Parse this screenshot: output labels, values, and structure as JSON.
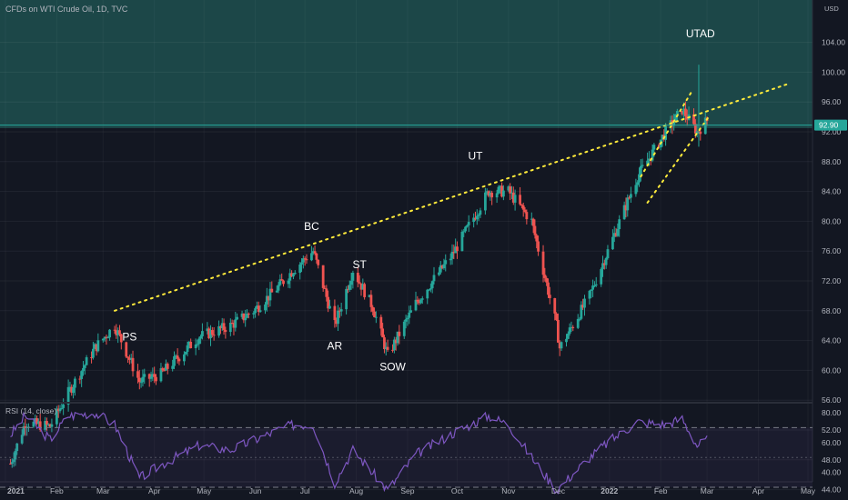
{
  "header": {
    "title": "CFDs on WTI Crude Oil, 1D, TVC",
    "currency": "USD"
  },
  "rsi": {
    "title": "RSI (14, close)",
    "ticks": [
      "80.00",
      "60.00",
      "40.00"
    ]
  },
  "price_axis": {
    "ticks": [
      "104.00",
      "100.00",
      "96.00",
      "92.00",
      "88.00",
      "84.00",
      "80.00",
      "76.00",
      "72.00",
      "68.00",
      "64.00",
      "60.00",
      "56.00",
      "52.00",
      "48.00",
      "44.00"
    ],
    "last_price": "92.90"
  },
  "time_axis": {
    "labels": [
      "2021",
      "Feb",
      "Mar",
      "Apr",
      "May",
      "Jun",
      "Jul",
      "Aug",
      "Sep",
      "Oct",
      "Nov",
      "Dec",
      "2022",
      "Feb",
      "Mar",
      "Apr",
      "May"
    ]
  },
  "annotations": [
    "PS",
    "BC",
    "AR",
    "ST",
    "SOW",
    "UT",
    "UTAD"
  ],
  "colors": {
    "up": "#26a69a",
    "down": "#ef5350",
    "rsi": "#7e57c2",
    "trendline": "#ffeb3b",
    "zone": "#1e4d4d"
  },
  "chart_data": {
    "type": "candlestick",
    "title": "CFDs on WTI Crude Oil, 1D, TVC",
    "ylim": [
      42,
      106
    ],
    "rsi_ylim": [
      25,
      85
    ],
    "rsi_bands": [
      70,
      50,
      30
    ],
    "price_anchors": [
      [
        "2021-01-04",
        47.5
      ],
      [
        "2021-01-13",
        53
      ],
      [
        "2021-01-28",
        52.5
      ],
      [
        "2021-02-08",
        57
      ],
      [
        "2021-02-24",
        63
      ],
      [
        "2021-03-08",
        66
      ],
      [
        "2021-03-23",
        58.5
      ],
      [
        "2021-04-05",
        59.5
      ],
      [
        "2021-04-28",
        64.5
      ],
      [
        "2021-05-17",
        66
      ],
      [
        "2021-05-31",
        68
      ],
      [
        "2021-06-14",
        71
      ],
      [
        "2021-06-24",
        73.5
      ],
      [
        "2021-07-06",
        76
      ],
      [
        "2021-07-19",
        66
      ],
      [
        "2021-07-30",
        73.5
      ],
      [
        "2021-08-11",
        68.5
      ],
      [
        "2021-08-20",
        62
      ],
      [
        "2021-09-06",
        69
      ],
      [
        "2021-09-28",
        75.5
      ],
      [
        "2021-10-20",
        84
      ],
      [
        "2021-11-01",
        84
      ],
      [
        "2021-11-15",
        80
      ],
      [
        "2021-11-30",
        66
      ],
      [
        "2021-12-02",
        63
      ],
      [
        "2021-12-20",
        70
      ],
      [
        "2021-12-31",
        76
      ],
      [
        "2022-01-18",
        86
      ],
      [
        "2022-02-04",
        92
      ],
      [
        "2022-02-14",
        95
      ],
      [
        "2022-02-23",
        92
      ],
      [
        "2022-03-01",
        93.5
      ]
    ],
    "rsi_anchors": [
      [
        "2021-01-04",
        65
      ],
      [
        "2021-01-13",
        78
      ],
      [
        "2021-01-28",
        62
      ],
      [
        "2021-02-08",
        78
      ],
      [
        "2021-02-24",
        80
      ],
      [
        "2021-03-08",
        72
      ],
      [
        "2021-03-23",
        36
      ],
      [
        "2021-04-05",
        45
      ],
      [
        "2021-04-28",
        58
      ],
      [
        "2021-05-17",
        55
      ],
      [
        "2021-06-14",
        68
      ],
      [
        "2021-06-24",
        72
      ],
      [
        "2021-07-06",
        72
      ],
      [
        "2021-07-19",
        33
      ],
      [
        "2021-07-30",
        55
      ],
      [
        "2021-08-20",
        28
      ],
      [
        "2021-09-06",
        52
      ],
      [
        "2021-09-28",
        66
      ],
      [
        "2021-10-20",
        78
      ],
      [
        "2021-11-01",
        72
      ],
      [
        "2021-11-15",
        50
      ],
      [
        "2021-11-30",
        28
      ],
      [
        "2021-12-20",
        50
      ],
      [
        "2021-12-31",
        60
      ],
      [
        "2022-01-18",
        74
      ],
      [
        "2022-02-04",
        72
      ],
      [
        "2022-02-14",
        76
      ],
      [
        "2022-02-23",
        58
      ],
      [
        "2022-03-01",
        62
      ]
    ],
    "trendlines": [
      {
        "name": "upper",
        "from": [
          "2021-03-08",
          68
        ],
        "to": [
          "2022-04-20",
          98.5
        ]
      },
      {
        "name": "wedge-upper",
        "from": [
          "2022-01-20",
          86
        ],
        "to": [
          "2022-02-20",
          97.5
        ]
      },
      {
        "name": "wedge-lower",
        "from": [
          "2022-01-24",
          82.5
        ],
        "to": [
          "2022-03-02",
          94
        ]
      }
    ],
    "horizontal_levels": [
      92.9
    ],
    "resistance_zone": [
      92.5,
      106
    ],
    "annotation_points": [
      {
        "label": "PS",
        "date": "2021-03-17",
        "price": 64
      },
      {
        "label": "BC",
        "date": "2021-07-05",
        "price": 78.8
      },
      {
        "label": "AR",
        "date": "2021-07-19",
        "price": 62.8
      },
      {
        "label": "ST",
        "date": "2021-08-03",
        "price": 73.7
      },
      {
        "label": "SOW",
        "date": "2021-08-23",
        "price": 60
      },
      {
        "label": "UT",
        "date": "2021-10-12",
        "price": 88.3
      },
      {
        "label": "UTAD",
        "date": "2022-02-25",
        "price": 104.7
      }
    ]
  }
}
